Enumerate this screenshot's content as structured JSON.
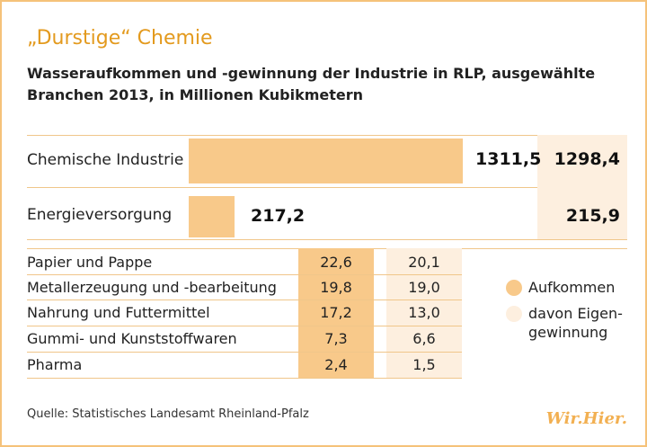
{
  "title": "„Durstige“ Chemie",
  "subtitle": "Wasseraufkommen und -gewinnung der Industrie in RLP, ausgewählte Branchen 2013, in Millionen Kubikmetern",
  "source": "Quelle: Statistisches Landesamt Rheinland-Pfalz",
  "logo_text": "Wir.Hier.",
  "colors": {
    "aufkommen": "#f8c98a",
    "eigengewinnung": "#fdefdf",
    "title": "#e39a1e",
    "frame": "#f5c27a"
  },
  "legend": [
    {
      "label": "Aufkommen",
      "color": "#f8c98a"
    },
    {
      "label": "davon Eigen-gewinnung",
      "line1": "davon Eigen-",
      "line2": "gewinnung",
      "color": "#fdefdf"
    }
  ],
  "chart_data": {
    "type": "bar",
    "title": "„Durstige“ Chemie",
    "subtitle": "Wasseraufkommen und -gewinnung der Industrie in RLP, ausgewählte Branchen 2013, in Millionen Kubikmetern",
    "categories": [
      "Chemische Industrie",
      "Energieversorgung",
      "Papier und Pappe",
      "Metallerzeugung und -bearbeitung",
      "Nahrung und Futtermittel",
      "Gummi- und Kunststoffwaren",
      "Pharma"
    ],
    "series": [
      {
        "name": "Aufkommen",
        "values": [
          1311.5,
          217.2,
          22.6,
          19.8,
          17.2,
          7.3,
          2.4
        ],
        "labels": [
          "1311,5",
          "217,2",
          "22,6",
          "19,8",
          "17,2",
          "7,3",
          "2,4"
        ]
      },
      {
        "name": "davon Eigengewinnung",
        "values": [
          1298.4,
          215.9,
          20.1,
          19.0,
          13.0,
          6.6,
          1.5
        ],
        "labels": [
          "1298,4",
          "215,9",
          "20,1",
          "19,0",
          "13,0",
          "6,6",
          "1,5"
        ]
      }
    ],
    "bar_scale_max": 1311.5
  }
}
